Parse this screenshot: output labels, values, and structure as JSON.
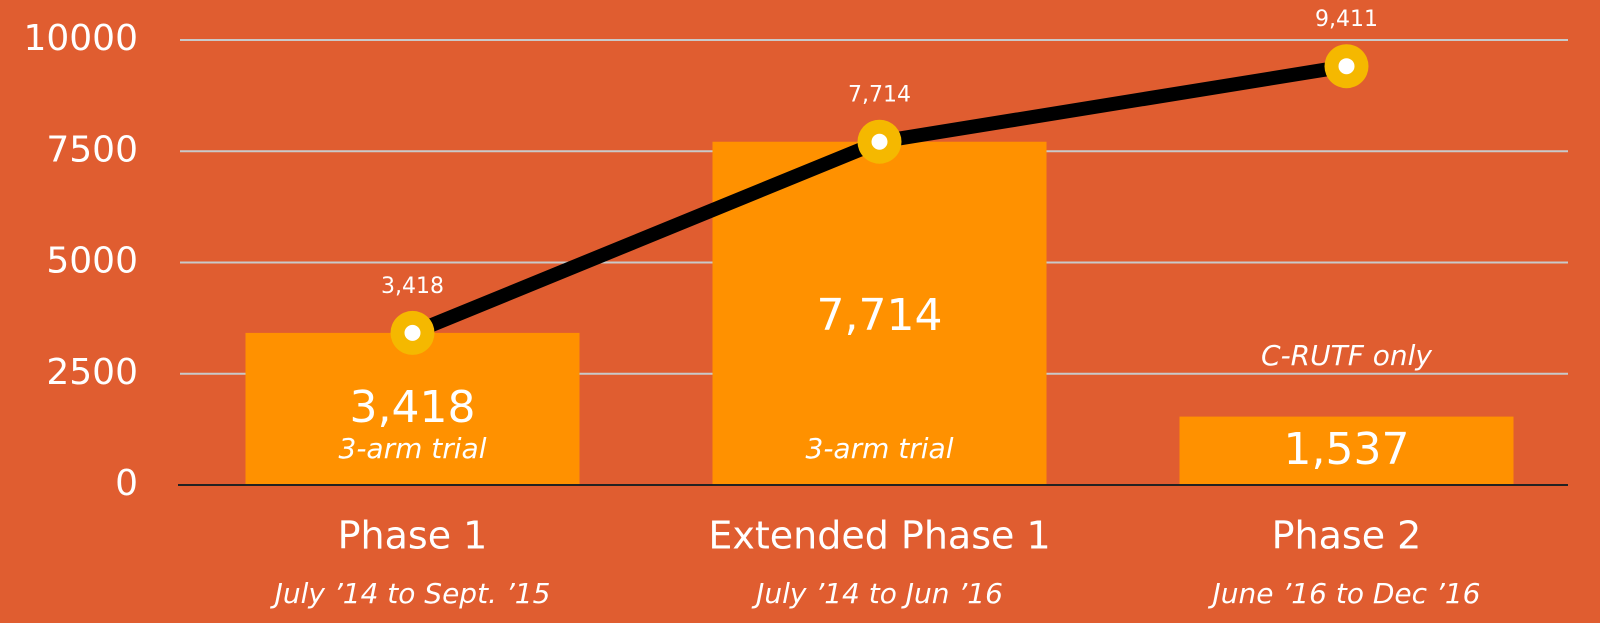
{
  "chart_data": {
    "type": "bar",
    "categories": [
      "Phase 1",
      "Extended Phase 1",
      "Phase 2"
    ],
    "subtitles": [
      "July ’14 to Sept. ’15",
      "July ’14 to Jun ’16",
      "June ’16 to Dec ’16"
    ],
    "annotations": [
      "3-arm trial",
      "3-arm trial",
      "C-RUTF only"
    ],
    "series": [
      {
        "type": "bar",
        "color": "#ff9100",
        "values": [
          3418,
          7714,
          1537
        ],
        "value_labels": [
          "3,418",
          "7,714",
          "1,537"
        ]
      },
      {
        "type": "line",
        "color": "#000000",
        "marker_color": "#f5b800",
        "values": [
          3418,
          7714,
          9411
        ],
        "value_labels": [
          "3,418",
          "7,714",
          "9,411"
        ]
      }
    ],
    "ylim": [
      0,
      10000
    ],
    "yticks": [
      0,
      2500,
      5000,
      7500,
      10000
    ],
    "grid": true
  }
}
